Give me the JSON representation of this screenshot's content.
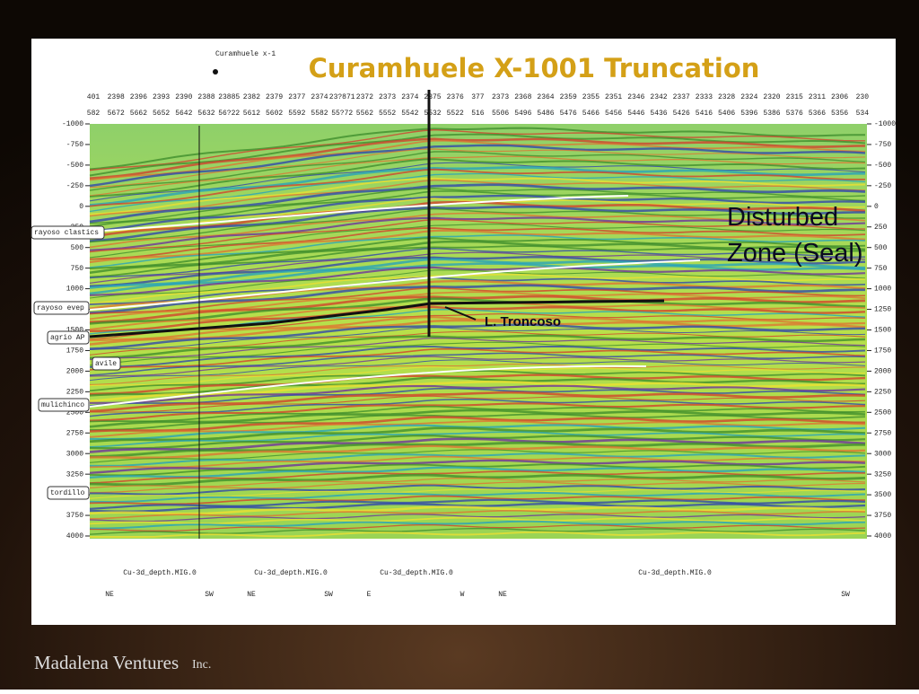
{
  "slide": {
    "title": "Curamhuele X-1001 Truncation",
    "well_name": "Curamhuele x-1",
    "trace_row_1": [
      "401",
      "2398",
      "2396",
      "2393",
      "2390",
      "2388",
      "23885",
      "2382",
      "2379",
      "2377",
      "2374",
      "23?871",
      "2372",
      "2373",
      "2374",
      "2375",
      "2376",
      "377",
      "2373",
      "2368",
      "2364",
      "2359",
      "2355",
      "2351",
      "2346",
      "2342",
      "2337",
      "2333",
      "2328",
      "2324",
      "2320",
      "2315",
      "2311",
      "2306",
      "230"
    ],
    "trace_row_2": [
      "582",
      "5672",
      "5662",
      "5652",
      "5642",
      "5632",
      "56?22",
      "5612",
      "5602",
      "5592",
      "5582",
      "55?72",
      "5562",
      "5552",
      "5542",
      "5532",
      "5522",
      "516",
      "5506",
      "5496",
      "5486",
      "5476",
      "5466",
      "5456",
      "5446",
      "5436",
      "5426",
      "5416",
      "5406",
      "5396",
      "5386",
      "5376",
      "5366",
      "5356",
      "534"
    ],
    "depth_ticks": [
      -1000,
      -750,
      -500,
      -250,
      0,
      250,
      500,
      750,
      1000,
      1250,
      1500,
      1750,
      2000,
      2250,
      2500,
      2750,
      3000,
      3250,
      3500,
      3750,
      4000
    ],
    "horizons": [
      "rayoso clastics",
      "rayoso evep",
      "agrio AP",
      "avile",
      "mulichinco",
      "tordillo"
    ],
    "annotations": {
      "disturbed_zone": "Disturbed Zone (Seal)",
      "troncoso": "L. Troncoso"
    },
    "lines": [
      "Cu-3d_depth.MIG.0",
      "Cu-3d_depth.MIG.0",
      "Cu-3d_depth.MIG.0",
      "Cu-3d_depth.MIG.0"
    ],
    "directions": [
      "NE",
      "SW",
      "NE",
      "SW",
      "E",
      "W",
      "NE",
      "SW"
    ],
    "footer": {
      "company": "Madalena Ventures",
      "suffix": "Inc."
    }
  }
}
